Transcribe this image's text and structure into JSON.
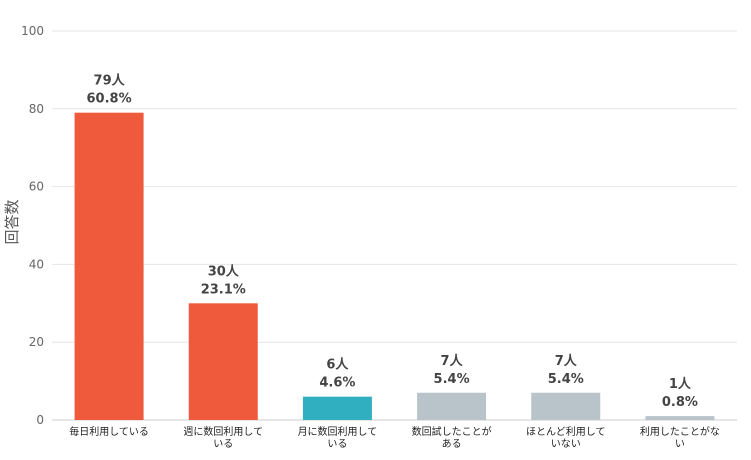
{
  "chart_data": {
    "type": "bar",
    "title": "",
    "xlabel": "",
    "ylabel": "回答数",
    "ylim": [
      0,
      100
    ],
    "yticks": [
      0,
      20,
      40,
      60,
      80,
      100
    ],
    "grid": true,
    "categories": [
      [
        "毎日利用している"
      ],
      [
        "週に数回利用して",
        "いる"
      ],
      [
        "月に数回利用して",
        "いる"
      ],
      [
        "数回試したことが",
        "ある"
      ],
      [
        "ほとんど利用して",
        "いない"
      ],
      [
        "利用したことがな",
        "い"
      ]
    ],
    "values": [
      79,
      30,
      6,
      7,
      7,
      1
    ],
    "data_labels": [
      [
        "79人",
        "60.8%"
      ],
      [
        "30人",
        "23.1%"
      ],
      [
        "6人",
        "4.6%"
      ],
      [
        "7人",
        "5.4%"
      ],
      [
        "7人",
        "5.4%"
      ],
      [
        "1人",
        "0.8%"
      ]
    ],
    "colors": [
      "#f05a3c",
      "#f05a3c",
      "#2fafbf",
      "#b9c3ca",
      "#b9c3ca",
      "#b9c3ca"
    ],
    "grid_color": "#e6e6e6",
    "axis_color": "#cccccc"
  }
}
